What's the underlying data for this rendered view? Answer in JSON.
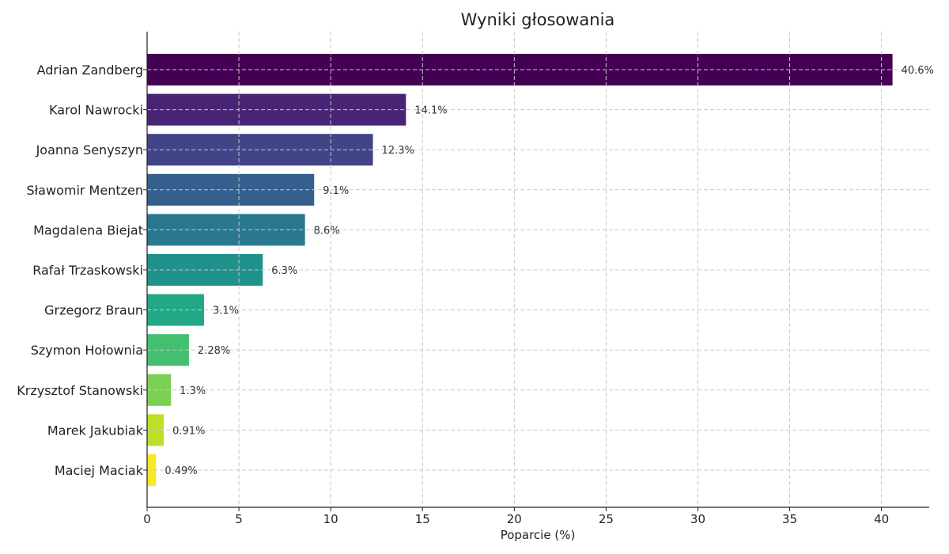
{
  "chart_data": {
    "type": "bar",
    "orientation": "horizontal",
    "title": "Wyniki głosowania",
    "xlabel": "Poparcie (%)",
    "ylabel": "",
    "xlim": [
      0,
      42.6
    ],
    "xticks": [
      0,
      5,
      10,
      15,
      20,
      25,
      30,
      35,
      40
    ],
    "grid": true,
    "categories": [
      "Adrian Zandberg",
      "Karol Nawrocki",
      "Joanna Senyszyn",
      "Sławomir Mentzen",
      "Magdalena Biejat",
      "Rafał Trzaskowski",
      "Grzegorz Braun",
      "Szymon Hołownia",
      "Krzysztof Stanowski",
      "Marek Jakubiak",
      "Maciej Maciak"
    ],
    "values": [
      40.6,
      14.1,
      12.3,
      9.1,
      8.6,
      6.3,
      3.1,
      2.28,
      1.3,
      0.91,
      0.49
    ],
    "value_labels": [
      "40.6%",
      "14.1%",
      "12.3%",
      "9.1%",
      "8.6%",
      "6.3%",
      "3.1%",
      "2.28%",
      "1.3%",
      "0.91%",
      "0.49%"
    ],
    "colors": [
      "#440154",
      "#482475",
      "#414487",
      "#355f8d",
      "#2a788e",
      "#21918c",
      "#22a884",
      "#44bf70",
      "#7ad151",
      "#bddf26",
      "#fde725"
    ]
  }
}
